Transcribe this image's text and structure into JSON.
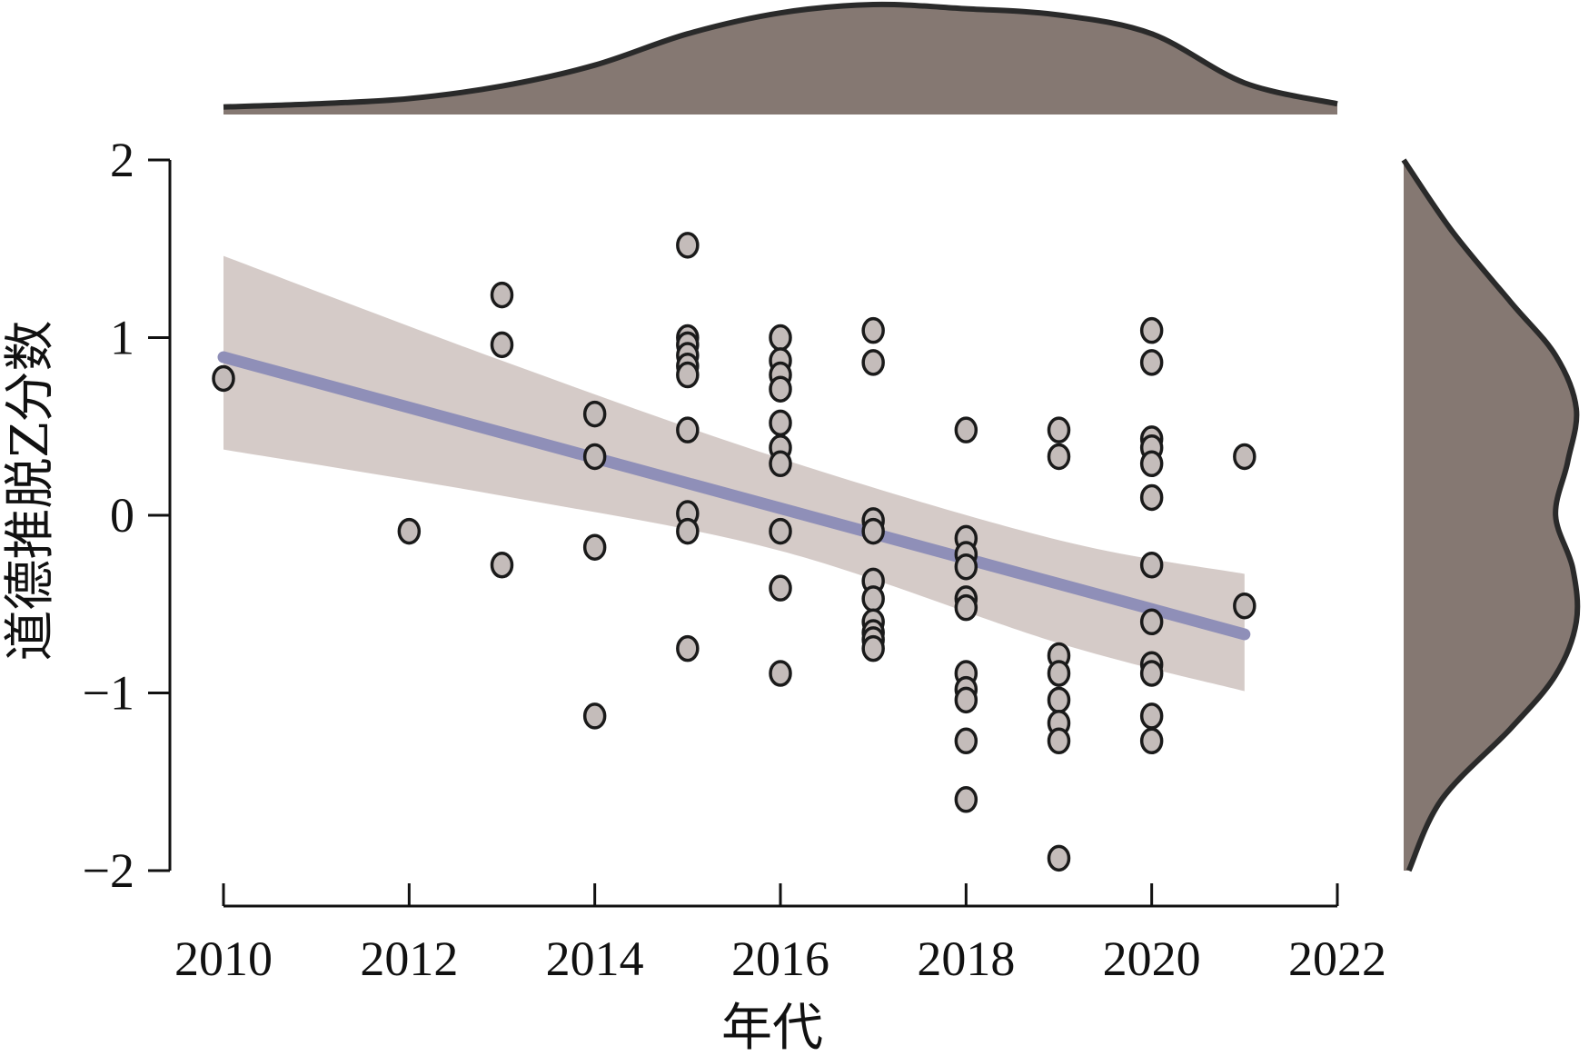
{
  "chart_data": {
    "type": "scatter",
    "xlabel": "年代",
    "ylabel": "道德推脱Z分数",
    "xlim": [
      2010,
      2022
    ],
    "ylim": [
      -2,
      2
    ],
    "xticks": [
      2010,
      2012,
      2014,
      2016,
      2018,
      2020,
      2022
    ],
    "yticks": [
      2,
      1,
      0,
      -1,
      -2
    ],
    "ytick_labels": [
      "2",
      "1",
      "0",
      "−1",
      "−2"
    ],
    "grid": false,
    "points": [
      {
        "x": 2010,
        "y": 0.77
      },
      {
        "x": 2012,
        "y": -0.09
      },
      {
        "x": 2013,
        "y": 1.24
      },
      {
        "x": 2013,
        "y": 0.96
      },
      {
        "x": 2013,
        "y": -0.28
      },
      {
        "x": 2014,
        "y": 0.57
      },
      {
        "x": 2014,
        "y": 0.33
      },
      {
        "x": 2014,
        "y": -0.18
      },
      {
        "x": 2014,
        "y": -1.13
      },
      {
        "x": 2015,
        "y": 1.52
      },
      {
        "x": 2015,
        "y": 1.0
      },
      {
        "x": 2015,
        "y": 0.96
      },
      {
        "x": 2015,
        "y": 0.9
      },
      {
        "x": 2015,
        "y": 0.84
      },
      {
        "x": 2015,
        "y": 0.79
      },
      {
        "x": 2015,
        "y": 0.48
      },
      {
        "x": 2015,
        "y": 0.01
      },
      {
        "x": 2015,
        "y": -0.09
      },
      {
        "x": 2015,
        "y": -0.75
      },
      {
        "x": 2016,
        "y": 1.0
      },
      {
        "x": 2016,
        "y": 0.87
      },
      {
        "x": 2016,
        "y": 0.79
      },
      {
        "x": 2016,
        "y": 0.71
      },
      {
        "x": 2016,
        "y": 0.52
      },
      {
        "x": 2016,
        "y": 0.38
      },
      {
        "x": 2016,
        "y": 0.29
      },
      {
        "x": 2016,
        "y": -0.09
      },
      {
        "x": 2016,
        "y": -0.41
      },
      {
        "x": 2016,
        "y": -0.89
      },
      {
        "x": 2017,
        "y": 1.04
      },
      {
        "x": 2017,
        "y": 0.86
      },
      {
        "x": 2017,
        "y": -0.03
      },
      {
        "x": 2017,
        "y": -0.09
      },
      {
        "x": 2017,
        "y": -0.37
      },
      {
        "x": 2017,
        "y": -0.47
      },
      {
        "x": 2017,
        "y": -0.6
      },
      {
        "x": 2017,
        "y": -0.66
      },
      {
        "x": 2017,
        "y": -0.7
      },
      {
        "x": 2017,
        "y": -0.75
      },
      {
        "x": 2018,
        "y": 0.48
      },
      {
        "x": 2018,
        "y": -0.13
      },
      {
        "x": 2018,
        "y": -0.22
      },
      {
        "x": 2018,
        "y": -0.29
      },
      {
        "x": 2018,
        "y": -0.47
      },
      {
        "x": 2018,
        "y": -0.52
      },
      {
        "x": 2018,
        "y": -0.89
      },
      {
        "x": 2018,
        "y": -0.98
      },
      {
        "x": 2018,
        "y": -1.04
      },
      {
        "x": 2018,
        "y": -1.27
      },
      {
        "x": 2018,
        "y": -1.6
      },
      {
        "x": 2019,
        "y": 0.48
      },
      {
        "x": 2019,
        "y": 0.33
      },
      {
        "x": 2019,
        "y": -0.79
      },
      {
        "x": 2019,
        "y": -0.89
      },
      {
        "x": 2019,
        "y": -1.04
      },
      {
        "x": 2019,
        "y": -1.17
      },
      {
        "x": 2019,
        "y": -1.27
      },
      {
        "x": 2019,
        "y": -1.93
      },
      {
        "x": 2020,
        "y": 1.04
      },
      {
        "x": 2020,
        "y": 0.86
      },
      {
        "x": 2020,
        "y": 0.43
      },
      {
        "x": 2020,
        "y": 0.38
      },
      {
        "x": 2020,
        "y": 0.29
      },
      {
        "x": 2020,
        "y": 0.1
      },
      {
        "x": 2020,
        "y": -0.28
      },
      {
        "x": 2020,
        "y": -0.6
      },
      {
        "x": 2020,
        "y": -0.84
      },
      {
        "x": 2020,
        "y": -0.89
      },
      {
        "x": 2020,
        "y": -1.13
      },
      {
        "x": 2020,
        "y": -1.27
      },
      {
        "x": 2021,
        "y": 0.33
      },
      {
        "x": 2021,
        "y": -0.51
      }
    ],
    "regression_line": {
      "x": [
        2010,
        2021
      ],
      "y": [
        0.89,
        -0.67
      ],
      "color": "#8f8fb8"
    },
    "confidence_band": {
      "x": [
        2010,
        2013,
        2016,
        2019,
        2021
      ],
      "upper": [
        1.46,
        0.87,
        0.32,
        -0.14,
        -0.33
      ],
      "lower": [
        0.37,
        0.11,
        -0.2,
        -0.72,
        -0.99
      ],
      "color": "#d5cbc8"
    },
    "marginal_x_density": {
      "x": [
        2010,
        2011,
        2012,
        2013,
        2014,
        2015,
        2016,
        2017,
        2018,
        2019,
        2020,
        2021,
        2022
      ],
      "density": [
        0.02,
        0.05,
        0.1,
        0.22,
        0.42,
        0.72,
        0.92,
        1.0,
        0.96,
        0.9,
        0.72,
        0.25,
        0.05
      ]
    },
    "marginal_y_density": {
      "y": [
        2.0,
        1.6,
        1.2,
        0.9,
        0.6,
        0.3,
        0.0,
        -0.3,
        -0.6,
        -0.9,
        -1.2,
        -1.6,
        -2.0
      ],
      "density": [
        0.0,
        0.28,
        0.62,
        0.88,
        1.0,
        0.95,
        0.88,
        0.98,
        1.0,
        0.88,
        0.62,
        0.22,
        0.03
      ]
    },
    "colors": {
      "point_fill": "#c4bcba",
      "point_stroke": "#1a1a1a",
      "density_fill": "#857872",
      "density_stroke": "#2a2a2a"
    }
  }
}
